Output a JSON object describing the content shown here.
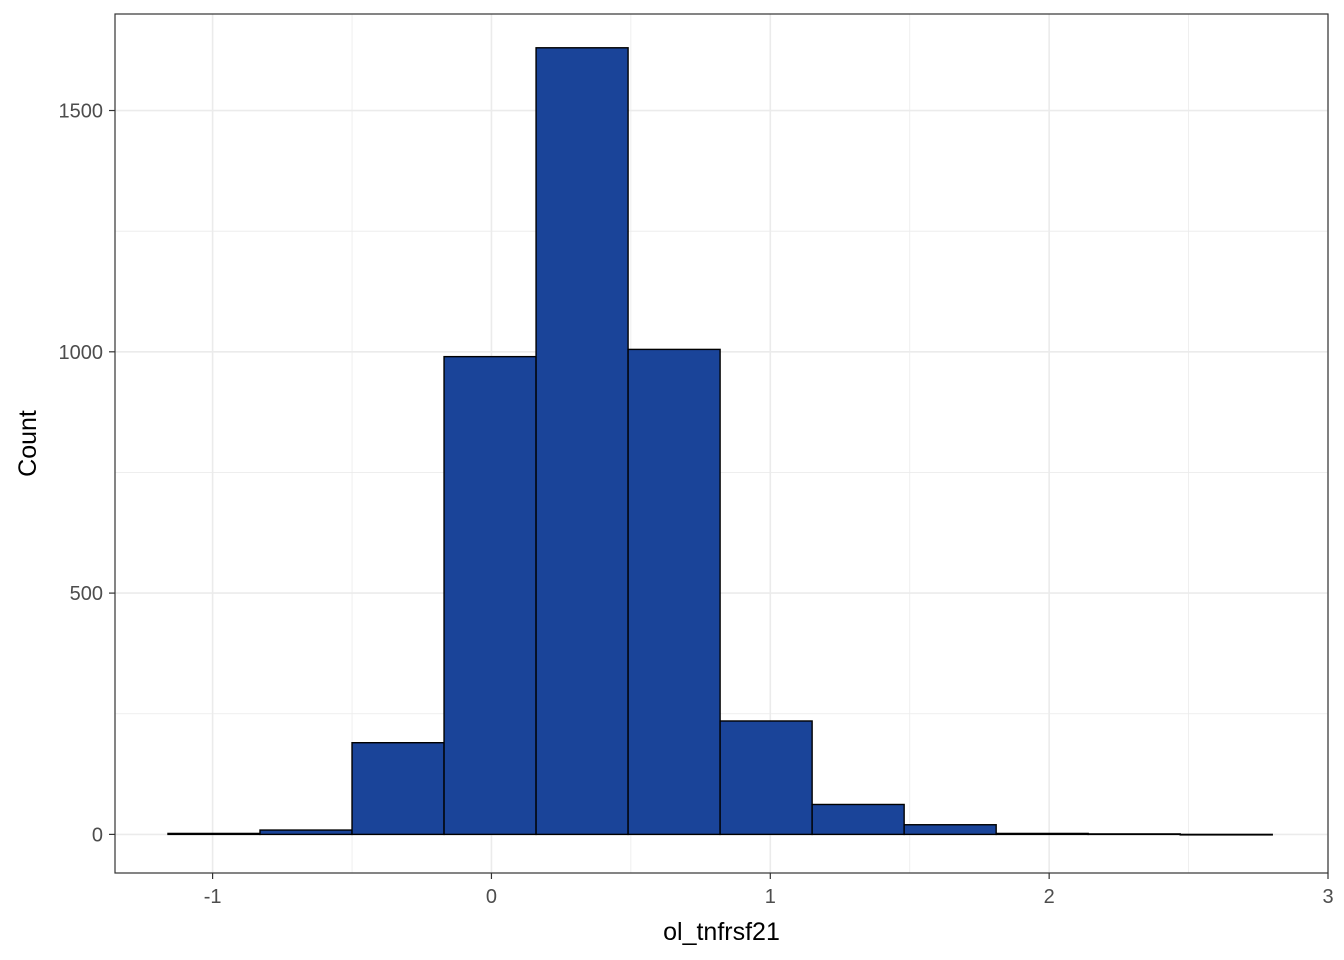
{
  "chart_data": {
    "type": "histogram",
    "title": "",
    "xlabel": "ol_tnfrsf21",
    "ylabel": "Count",
    "xlim": [
      -1.35,
      3.0
    ],
    "ylim": [
      -80,
      1700
    ],
    "x_ticks": [
      -1,
      0,
      1,
      2,
      3
    ],
    "x_tick_labels": [
      "-1",
      "0",
      "1",
      "2",
      "3"
    ],
    "y_ticks": [
      0,
      500,
      1000,
      1500
    ],
    "y_tick_labels": [
      "0",
      "500",
      "1000",
      "1500"
    ],
    "x_minor_ticks": [
      -0.5,
      0.5,
      1.5,
      2.5
    ],
    "y_minor_ticks": [
      250,
      750,
      1250
    ],
    "grid": true,
    "legend": "none",
    "bin_edges": [
      -1.16,
      -0.83,
      -0.5,
      -0.17,
      0.16,
      0.49,
      0.82,
      1.15,
      1.48,
      1.81,
      2.14,
      2.47,
      2.8
    ],
    "counts": [
      2,
      9,
      190,
      990,
      1630,
      1005,
      235,
      62,
      20,
      2,
      1,
      0
    ],
    "colors": {
      "bar_fill": "#1a4499",
      "bar_stroke": "#000000",
      "grid": "#ebebeb",
      "panel_border": "#333333",
      "tick_text": "#4d4d4d",
      "axis_title": "#000000"
    }
  }
}
